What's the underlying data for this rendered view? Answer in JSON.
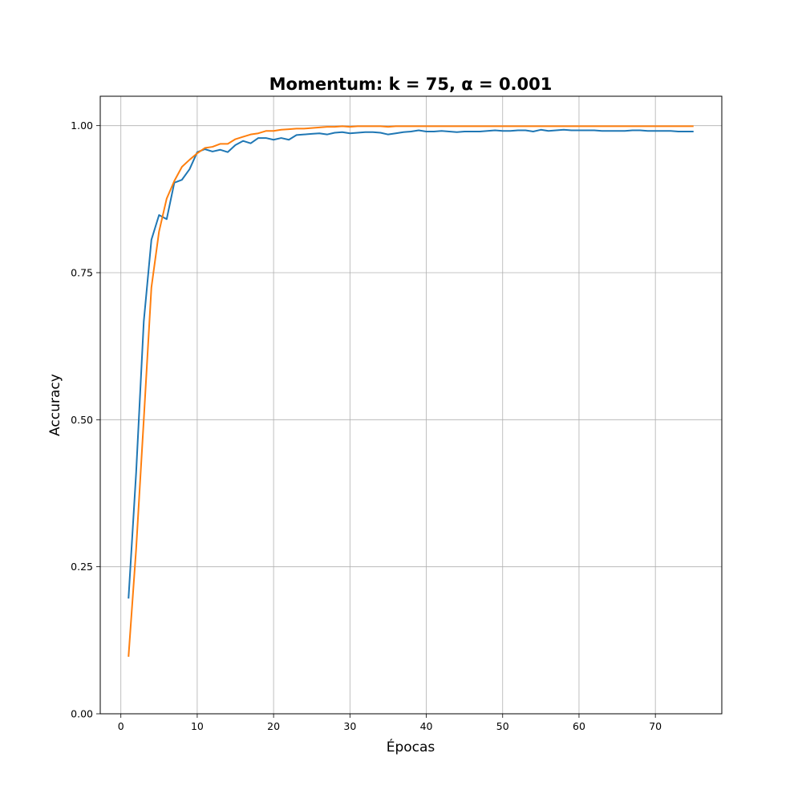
{
  "chart_data": {
    "type": "line",
    "title": "Momentum: k = 75, α = 0.001",
    "xlabel": "Épocas",
    "ylabel": "Accuracy",
    "xlim": [
      -2.7,
      78.7
    ],
    "ylim": [
      0.0,
      1.05
    ],
    "xticks": [
      0,
      10,
      20,
      30,
      40,
      50,
      60,
      70
    ],
    "xtick_labels": [
      "0",
      "10",
      "20",
      "30",
      "40",
      "50",
      "60",
      "70"
    ],
    "yticks": [
      0.0,
      0.25,
      0.5,
      0.75,
      1.0
    ],
    "ytick_labels": [
      "0.00",
      "0.25",
      "0.50",
      "0.75",
      "1.00"
    ],
    "grid": true,
    "legend": "none",
    "colors": [
      "#1f77b4",
      "#ff7f0e"
    ],
    "x": [
      1,
      2,
      3,
      4,
      5,
      6,
      7,
      8,
      9,
      10,
      11,
      12,
      13,
      14,
      15,
      16,
      17,
      18,
      19,
      20,
      21,
      22,
      23,
      24,
      25,
      26,
      27,
      28,
      29,
      30,
      31,
      32,
      33,
      34,
      35,
      36,
      37,
      38,
      39,
      40,
      41,
      42,
      43,
      44,
      45,
      46,
      47,
      48,
      49,
      50,
      51,
      52,
      53,
      54,
      55,
      56,
      57,
      58,
      59,
      60,
      61,
      62,
      63,
      64,
      65,
      66,
      67,
      68,
      69,
      70,
      71,
      72,
      73,
      74,
      75
    ],
    "series": [
      {
        "color": "#1f77b4",
        "values": [
          0.196,
          0.41,
          0.667,
          0.806,
          0.848,
          0.841,
          0.903,
          0.908,
          0.926,
          0.955,
          0.96,
          0.956,
          0.959,
          0.955,
          0.967,
          0.974,
          0.97,
          0.979,
          0.979,
          0.976,
          0.979,
          0.976,
          0.984,
          0.985,
          0.986,
          0.987,
          0.985,
          0.988,
          0.989,
          0.987,
          0.988,
          0.989,
          0.989,
          0.988,
          0.985,
          0.987,
          0.989,
          0.99,
          0.992,
          0.99,
          0.99,
          0.991,
          0.99,
          0.989,
          0.99,
          0.99,
          0.99,
          0.991,
          0.992,
          0.991,
          0.991,
          0.992,
          0.992,
          0.99,
          0.993,
          0.991,
          0.992,
          0.993,
          0.992,
          0.992,
          0.992,
          0.992,
          0.991,
          0.991,
          0.991,
          0.991,
          0.992,
          0.992,
          0.991,
          0.991,
          0.991,
          0.991,
          0.99,
          0.99,
          0.99
        ]
      },
      {
        "color": "#ff7f0e",
        "values": [
          0.097,
          0.28,
          0.5,
          0.725,
          0.82,
          0.876,
          0.906,
          0.93,
          0.942,
          0.953,
          0.962,
          0.964,
          0.969,
          0.969,
          0.977,
          0.981,
          0.985,
          0.987,
          0.991,
          0.991,
          0.993,
          0.994,
          0.995,
          0.995,
          0.996,
          0.997,
          0.998,
          0.998,
          0.999,
          0.998,
          0.999,
          0.999,
          0.999,
          0.999,
          0.998,
          0.999,
          0.999,
          0.999,
          0.999,
          0.999,
          0.999,
          0.999,
          0.999,
          0.999,
          0.999,
          0.999,
          0.999,
          0.999,
          0.999,
          0.999,
          0.999,
          0.999,
          0.999,
          0.999,
          0.999,
          0.999,
          0.999,
          0.999,
          0.999,
          0.999,
          0.999,
          0.999,
          0.999,
          0.999,
          0.999,
          0.999,
          0.999,
          0.999,
          0.999,
          0.999,
          0.999,
          0.999,
          0.999,
          0.999,
          0.999
        ]
      }
    ]
  }
}
